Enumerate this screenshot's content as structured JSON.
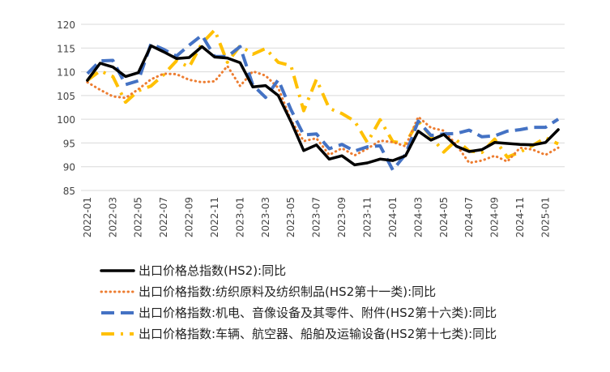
{
  "chart_data": {
    "type": "line",
    "title": "",
    "xlabel": "",
    "ylabel": "",
    "ylim": [
      85,
      120
    ],
    "yticks": [
      85,
      90,
      95,
      100,
      105,
      110,
      115,
      120
    ],
    "grid": "horizontal",
    "legend_position": "bottom",
    "x": [
      "2022-01",
      "2022-02",
      "2022-03",
      "2022-04",
      "2022-05",
      "2022-06",
      "2022-07",
      "2022-08",
      "2022-09",
      "2022-10",
      "2022-11",
      "2022-12",
      "2023-01",
      "2023-02",
      "2023-03",
      "2023-04",
      "2023-05",
      "2023-06",
      "2023-07",
      "2023-08",
      "2023-09",
      "2023-10",
      "2023-11",
      "2023-12",
      "2024-01",
      "2024-02",
      "2024-03",
      "2024-04",
      "2024-05",
      "2024-06",
      "2024-07",
      "2024-08",
      "2024-09",
      "2024-10",
      "2024-11",
      "2024-12",
      "2025-01",
      "2025-02"
    ],
    "x_tick_labels": [
      "2022-01",
      "2022-03",
      "2022-05",
      "2022-07",
      "2022-09",
      "2022-11",
      "2023-01",
      "2023-03",
      "2023-05",
      "2023-07",
      "2023-09",
      "2023-11",
      "2024-01",
      "2024-03",
      "2024-05",
      "2024-07",
      "2024-09",
      "2024-11",
      "2025-01"
    ],
    "series": [
      {
        "name": "出口价格总指数(HS2):同比",
        "color": "#000000",
        "style": "solid",
        "values": [
          108.2,
          111.8,
          111.0,
          109.0,
          109.8,
          115.5,
          114.2,
          112.8,
          113.0,
          115.3,
          113.1,
          112.9,
          111.9,
          106.8,
          107.1,
          105.0,
          99.5,
          93.4,
          94.6,
          91.6,
          92.3,
          90.4,
          90.8,
          91.6,
          91.3,
          92.3,
          97.5,
          95.6,
          96.8,
          94.3,
          93.2,
          93.6,
          95.1,
          94.9,
          94.7,
          94.6,
          95.1,
          97.8
        ]
      },
      {
        "name": "出口价格指数:纺织原料及纺织制品(HS2第十一类):同比",
        "color": "#ED7D31",
        "style": "dotted",
        "values": [
          107.8,
          106.2,
          104.8,
          104.5,
          106.3,
          108.4,
          109.6,
          109.5,
          108.3,
          107.8,
          108.0,
          111.2,
          107.0,
          110.1,
          109.2,
          106.6,
          99.8,
          95.4,
          96.0,
          92.5,
          93.9,
          92.4,
          93.8,
          95.5,
          95.2,
          94.3,
          100.5,
          98.2,
          97.6,
          94.6,
          90.8,
          91.3,
          92.3,
          91.1,
          94.0,
          93.6,
          92.5,
          94.0
        ]
      },
      {
        "name": "出口价格指数:机电、音像设备及其零件、附件(HS2第十六类):同比",
        "color": "#4472C4",
        "style": "dashed",
        "values": [
          109.6,
          112.3,
          112.4,
          107.3,
          108.1,
          115.9,
          114.7,
          113.3,
          115.6,
          117.7,
          113.2,
          113.2,
          115.3,
          107.2,
          104.6,
          108.3,
          102.0,
          96.7,
          96.9,
          93.8,
          94.7,
          93.3,
          94.2,
          94.4,
          89.3,
          92.6,
          99.6,
          96.6,
          96.9,
          97.0,
          97.7,
          96.3,
          96.5,
          97.5,
          97.8,
          98.3,
          98.3,
          100.0
        ]
      },
      {
        "name": "出口价格指数:车辆、航空器、船舶及运输设备(HS2第十七类):同比",
        "color": "#FFC000",
        "style": "dashdot",
        "values": [
          108.2,
          110.2,
          109.0,
          103.6,
          106.0,
          107.0,
          109.4,
          112.3,
          111.0,
          116.0,
          118.8,
          112.0,
          115.5,
          113.7,
          114.9,
          112.0,
          111.3,
          101.8,
          108.4,
          102.3,
          101.2,
          99.6,
          95.1,
          99.9,
          95.3,
          94.9,
          99.6,
          96.4,
          93.1,
          95.6,
          93.3,
          93.0,
          95.8,
          92.0,
          93.1,
          94.5,
          96.1,
          94.8
        ]
      }
    ]
  }
}
